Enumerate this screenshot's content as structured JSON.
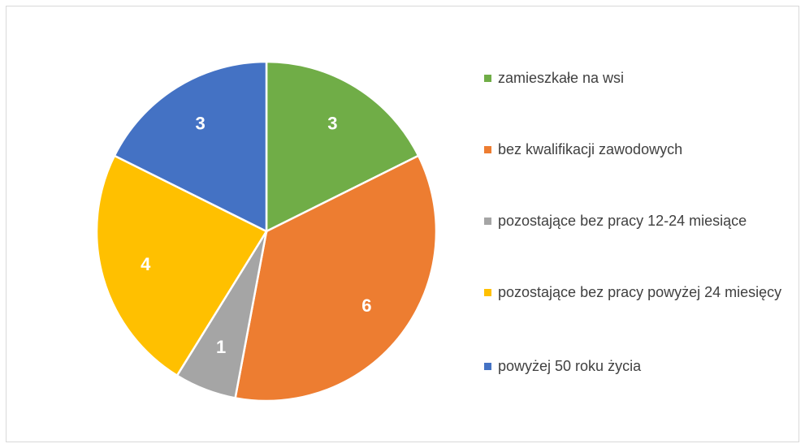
{
  "chart_data": {
    "type": "pie",
    "categories": [
      "zamieszkałe na wsi",
      "bez kwalifikacji zawodowych",
      "pozostające bez pracy 12-24 miesiące",
      "pozostające bez pracy powyżej 24 miesięcy",
      "powyżej 50 roku życia"
    ],
    "values": [
      3,
      6,
      1,
      4,
      3
    ],
    "colors": [
      "#70ad47",
      "#ed7d31",
      "#a5a5a5",
      "#ffc000",
      "#4472c4"
    ],
    "legend": "right"
  }
}
